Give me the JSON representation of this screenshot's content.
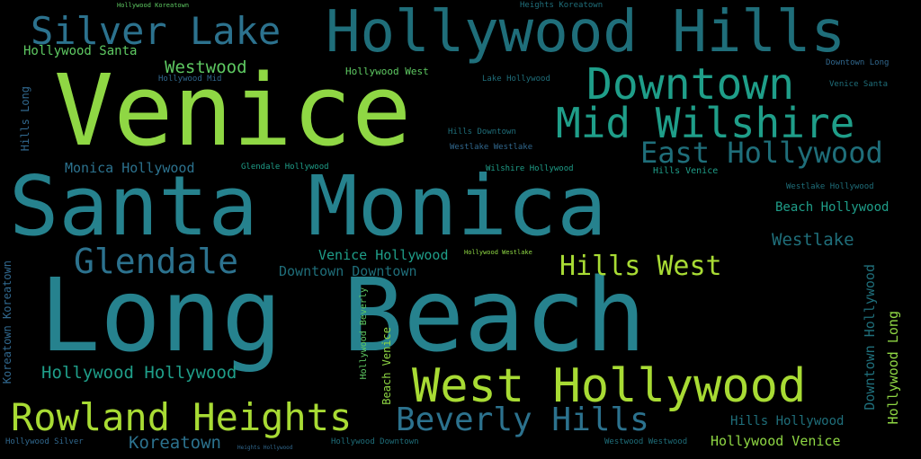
{
  "words": {
    "long_beach": "Long Beach",
    "santa_monica": "Santa Monica",
    "venice": "Venice",
    "hollywood_hills": "Hollywood Hills",
    "west_hollywood": "West Hollywood",
    "downtown": "Downtown",
    "mid_wilshire": "Mid Wilshire",
    "silver_lake": "Silver Lake",
    "rowland_heights": "Rowland Heights",
    "beverly_hills": "Beverly Hills",
    "glendale": "Glendale",
    "east_hollywood": "East Hollywood",
    "hills_west": "Hills West",
    "westwood": "Westwood",
    "hollywood_santa": "Hollywood Santa",
    "monica_hollywood": "Monica Hollywood",
    "hollywood_hollywood": "Hollywood Hollywood",
    "koreatown": "Koreatown",
    "venice_hollywood": "Venice Hollywood",
    "downtown_downtown": "Downtown Downtown",
    "westlake": "Westlake",
    "beach_hollywood": "Beach Hollywood",
    "hills_hollywood": "Hills Hollywood",
    "hollywood_venice": "Hollywood Venice",
    "hollywood_west": "Hollywood West",
    "hills_long": "Hills Long",
    "downtown_hollywood": "Downtown Hollywood",
    "hollywood_long": "Hollywood Long",
    "hollywood_silver": "Hollywood Silver",
    "hollywood_downtown": "Hollywood Downtown",
    "westwood_westwood": "Westwood Westwood",
    "heights_koreatown": "Heights Koreatown",
    "downtown_long": "Downtown Long",
    "venice_santa": "Venice Santa",
    "hills_downtown": "Hills Downtown",
    "westlake_westlake": "Westlake Westlake",
    "wilshire_hollywood": "Wilshire Hollywood",
    "hills_venice": "Hills Venice",
    "glendale_hollywood": "Glendale Hollywood",
    "westlake_hollywood": "Westlake Hollywood",
    "hollywood_westlake": "Hollywood Westlake",
    "beach_venice": "Beach Venice",
    "hollywood_beverly": "Hollywood Beverly",
    "koreatown_koreatown": "Koreatown Koreatown",
    "hollywood_koreatown": "Hollywood Koreatown",
    "heights_hollywood": "Heights Hollywood",
    "hollywood_mid": "Hollywood Mid",
    "lake_hollywood": "Lake Hollywood"
  },
  "colors": {
    "background": "#000000",
    "teal": "#26828e",
    "teal_dark": "#1f6e7a",
    "green": "#5ec962",
    "lime": "#8fd744",
    "lime_light": "#a8db34",
    "blue": "#2c728e",
    "blue_dark": "#31688e",
    "aqua": "#1f9e89",
    "aqua_light": "#22a884"
  }
}
